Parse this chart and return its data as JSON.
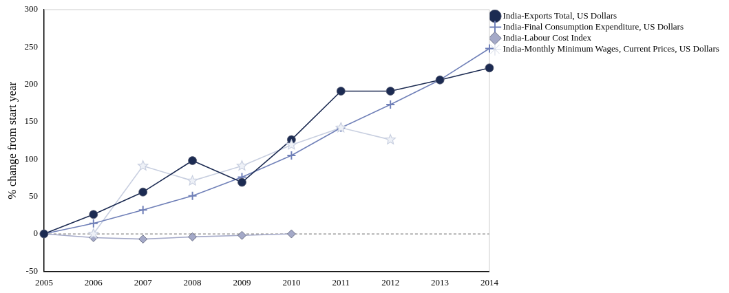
{
  "chart_data": {
    "type": "line",
    "ylabel": "% change from start year",
    "categories": [
      "2005",
      "2006",
      "2007",
      "2008",
      "2009",
      "2010",
      "2011",
      "2012",
      "2013",
      "2014"
    ],
    "series": [
      {
        "name": "India-Exports Total, US Dollars",
        "color": "#1c2b52",
        "marker": "circle",
        "values": [
          0,
          26,
          56,
          98,
          69,
          126,
          191,
          191,
          206,
          222
        ]
      },
      {
        "name": "India-Final Consumption Expenditure, US Dollars",
        "color": "#7080b8",
        "marker": "cross",
        "values": [
          0,
          14,
          32,
          51,
          76,
          105,
          142,
          173,
          206,
          248
        ]
      },
      {
        "name": "India-Labour Cost Index",
        "color": "#a4a9c8",
        "marker": "diamond",
        "values": [
          0,
          -5,
          -7,
          -4,
          -2,
          0,
          null,
          null,
          null,
          null
        ]
      },
      {
        "name": "India-Monthly Minimum Wages, Current Prices, US Dollars",
        "color": "#c8cfe0",
        "marker": "star",
        "values": [
          null,
          0,
          91,
          71,
          91,
          119,
          142,
          126,
          null,
          null
        ]
      }
    ],
    "ylim": [
      -50,
      300
    ],
    "yticks": [
      -50,
      0,
      50,
      100,
      150,
      200,
      250,
      300
    ],
    "ref_lines": [
      {
        "axis": "y",
        "value": 0,
        "color": "#888888",
        "line_style": "dashed"
      }
    ],
    "grid": false,
    "legend": "top right"
  }
}
